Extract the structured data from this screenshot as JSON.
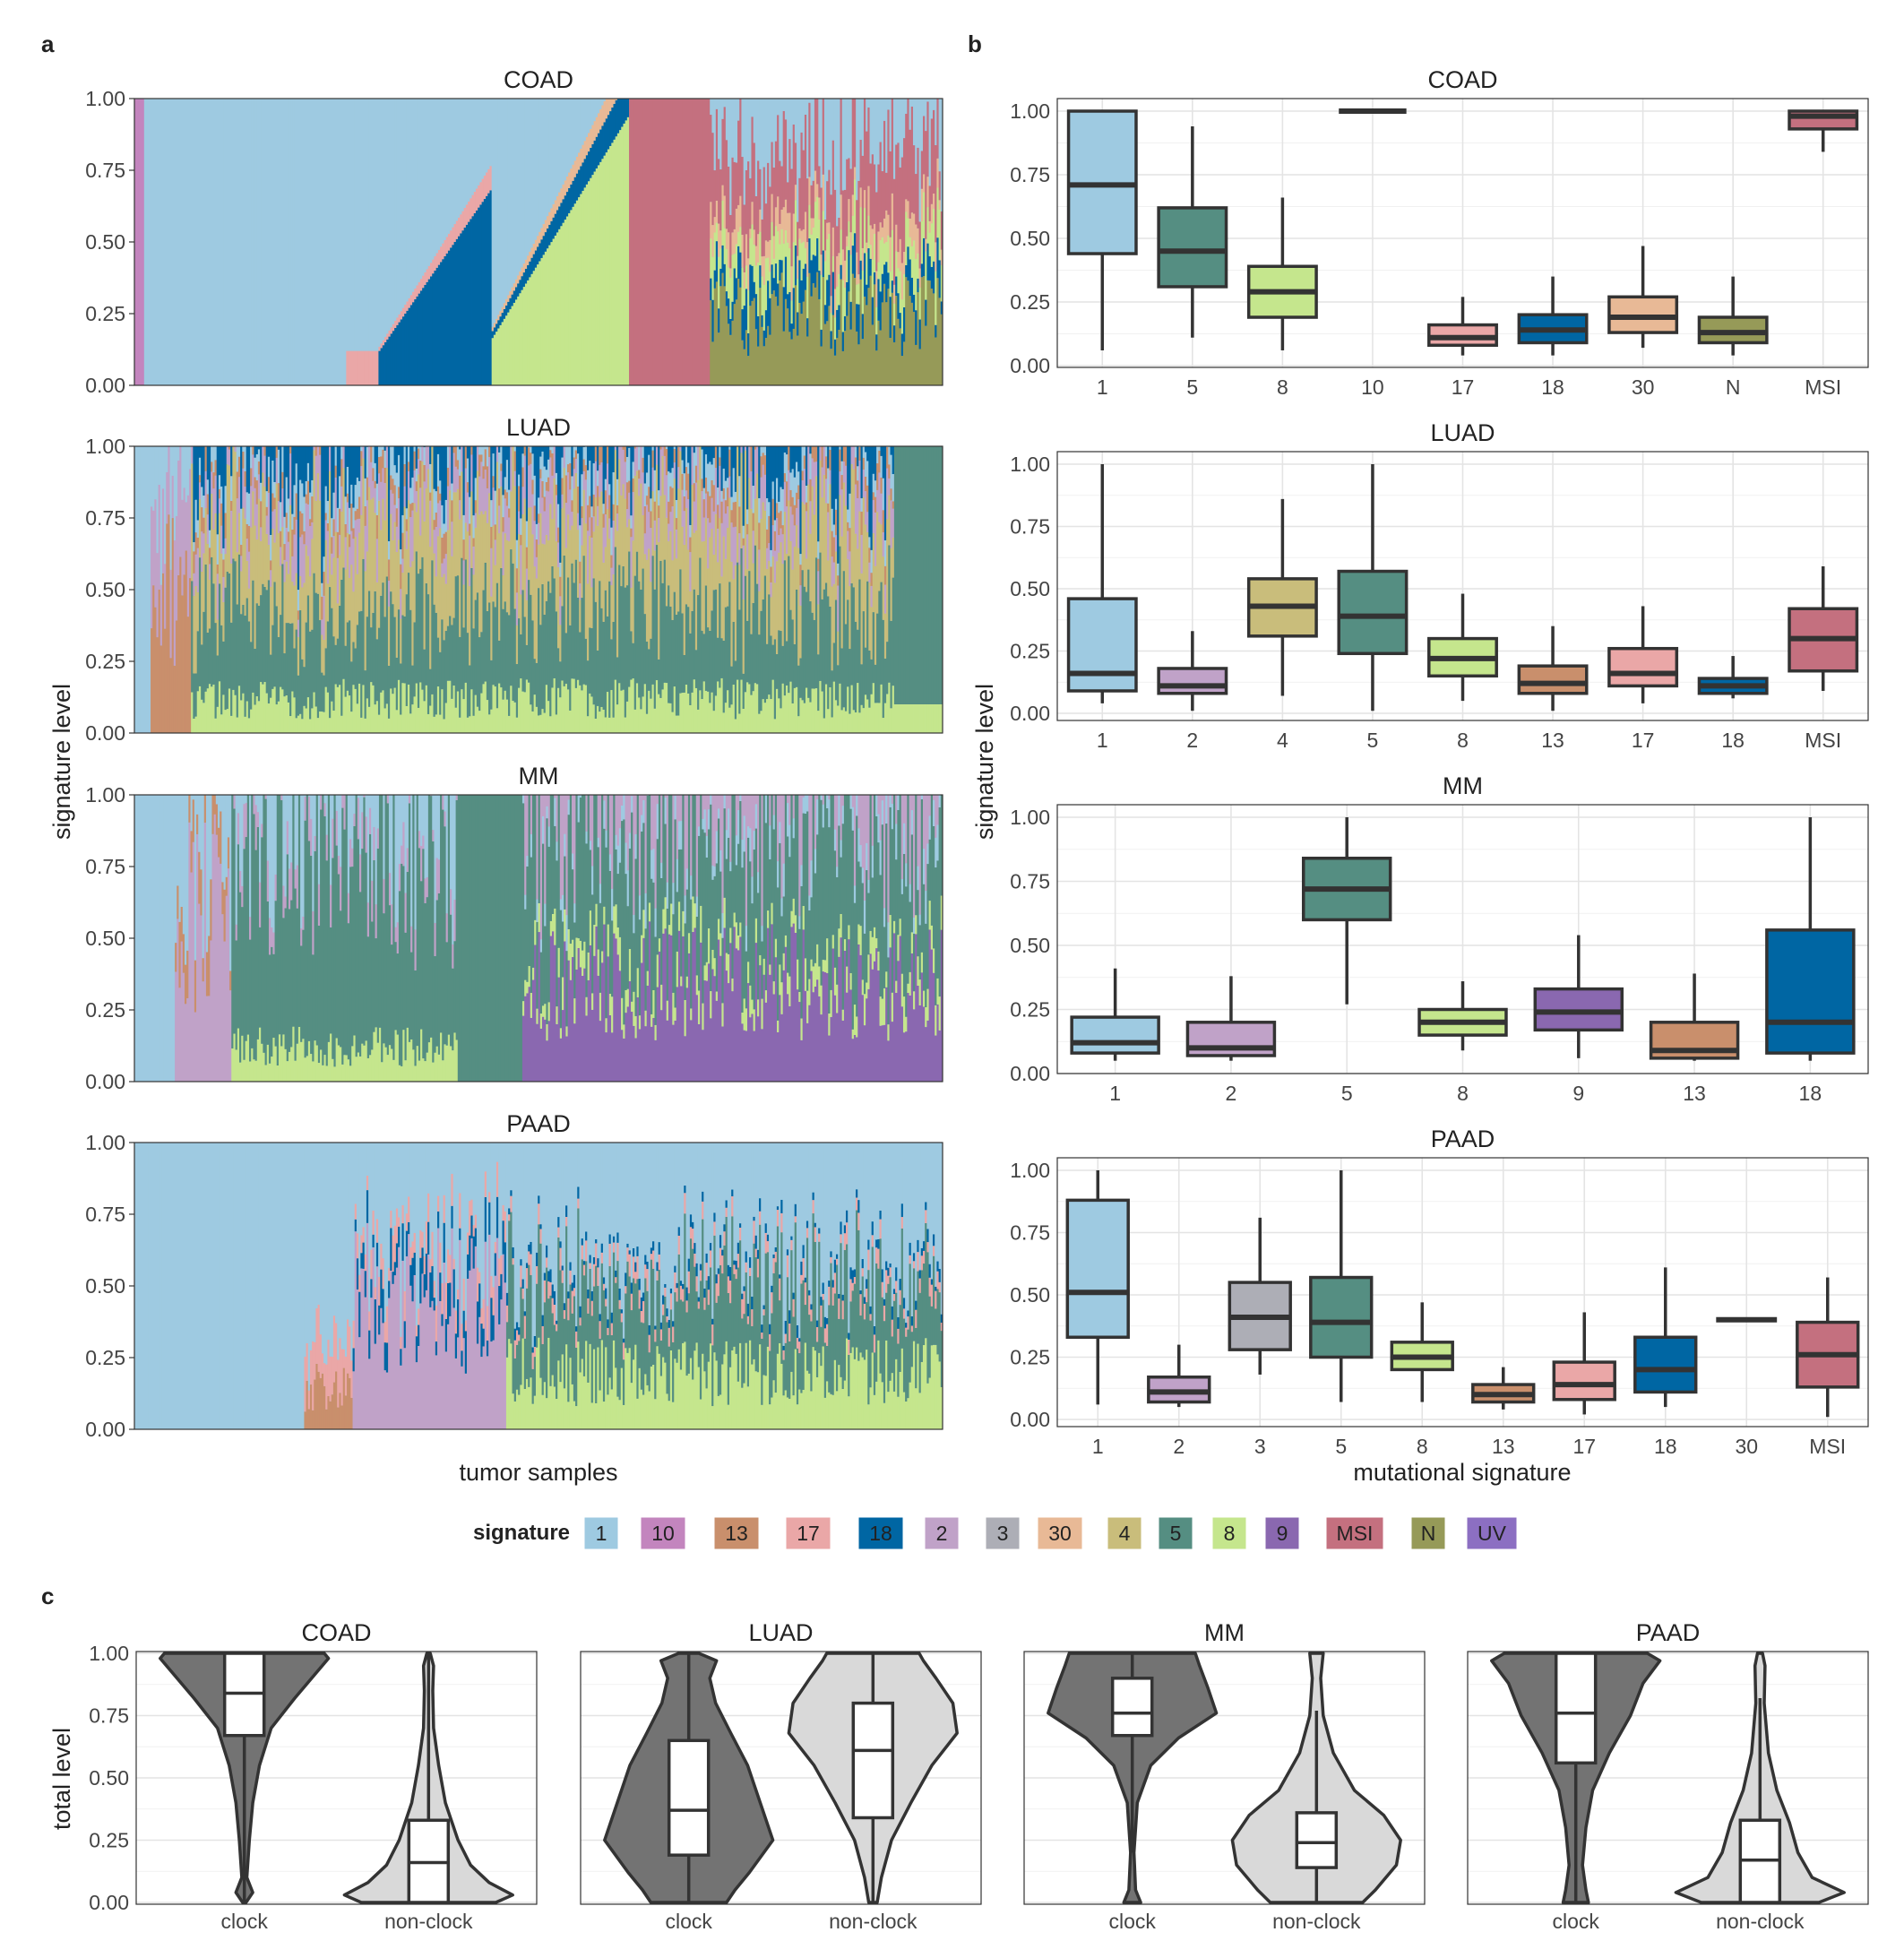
{
  "figure": {
    "panel_labels": [
      "a",
      "b",
      "c"
    ],
    "legend": {
      "title": "signature",
      "entries": [
        {
          "label": "1",
          "color": "#9ecae1"
        },
        {
          "label": "10",
          "color": "#c385be"
        },
        {
          "label": "13",
          "color": "#c98f6c"
        },
        {
          "label": "17",
          "color": "#eaa7a7"
        },
        {
          "label": "18",
          "color": "#0066a3"
        },
        {
          "label": "2",
          "color": "#c0a2c8"
        },
        {
          "label": "3",
          "color": "#adaeb6"
        },
        {
          "label": "30",
          "color": "#e8b996"
        },
        {
          "label": "4",
          "color": "#c9bd7b"
        },
        {
          "label": "5",
          "color": "#558e82"
        },
        {
          "label": "8",
          "color": "#c5e68d"
        },
        {
          "label": "9",
          "color": "#8a68b0"
        },
        {
          "label": "MSI",
          "color": "#c4707f"
        },
        {
          "label": "N",
          "color": "#969a58"
        },
        {
          "label": "UV",
          "color": "#8c6fc2"
        }
      ]
    }
  },
  "chart_data": [
    {
      "panel": "a",
      "type": "area",
      "description": "stacked signature levels per tumor sample, one facet per cancer type",
      "xlabel": "tumor samples",
      "ylabel": "signature level",
      "ylim": [
        0,
        1
      ],
      "yticks": [
        "0.00",
        "0.25",
        "0.50",
        "0.75",
        "1.00"
      ],
      "facets": [
        {
          "title": "COAD",
          "dominant_signatures": [
            "1",
            "17",
            "18",
            "8",
            "MSI",
            "N",
            "30",
            "10"
          ]
        },
        {
          "title": "LUAD",
          "dominant_signatures": [
            "1",
            "2",
            "13",
            "18",
            "4",
            "5",
            "8",
            "17"
          ]
        },
        {
          "title": "MM",
          "dominant_signatures": [
            "1",
            "2",
            "13",
            "5",
            "8",
            "9",
            "UV"
          ]
        },
        {
          "title": "PAAD",
          "dominant_signatures": [
            "1",
            "13",
            "17",
            "18",
            "2",
            "5",
            "8"
          ]
        }
      ]
    },
    {
      "panel": "b",
      "type": "box",
      "xlabel": "mutational signature",
      "ylabel": "signature level",
      "yticks": [
        "0.00",
        "0.25",
        "0.50",
        "0.75",
        "1.00"
      ],
      "facets": [
        {
          "title": "COAD",
          "boxes": [
            {
              "sig": "1",
              "min": 0.06,
              "q1": 0.44,
              "median": 0.71,
              "q3": 1.0,
              "max": 1.0
            },
            {
              "sig": "5",
              "min": 0.11,
              "q1": 0.31,
              "median": 0.45,
              "q3": 0.62,
              "max": 0.94
            },
            {
              "sig": "8",
              "min": 0.06,
              "q1": 0.19,
              "median": 0.29,
              "q3": 0.39,
              "max": 0.66
            },
            {
              "sig": "10",
              "min": 1.0,
              "q1": 1.0,
              "median": 1.0,
              "q3": 1.0,
              "max": 1.0
            },
            {
              "sig": "17",
              "min": 0.04,
              "q1": 0.08,
              "median": 0.11,
              "q3": 0.16,
              "max": 0.27
            },
            {
              "sig": "18",
              "min": 0.04,
              "q1": 0.09,
              "median": 0.14,
              "q3": 0.2,
              "max": 0.35
            },
            {
              "sig": "30",
              "min": 0.07,
              "q1": 0.13,
              "median": 0.19,
              "q3": 0.27,
              "max": 0.47
            },
            {
              "sig": "N",
              "min": 0.04,
              "q1": 0.09,
              "median": 0.13,
              "q3": 0.19,
              "max": 0.35
            },
            {
              "sig": "MSI",
              "min": 0.84,
              "q1": 0.93,
              "median": 0.98,
              "q3": 1.0,
              "max": 1.0
            }
          ]
        },
        {
          "title": "LUAD",
          "boxes": [
            {
              "sig": "1",
              "min": 0.04,
              "q1": 0.09,
              "median": 0.16,
              "q3": 0.46,
              "max": 1.0
            },
            {
              "sig": "2",
              "min": 0.01,
              "q1": 0.08,
              "median": 0.11,
              "q3": 0.18,
              "max": 0.33
            },
            {
              "sig": "4",
              "min": 0.07,
              "q1": 0.31,
              "median": 0.43,
              "q3": 0.54,
              "max": 0.86
            },
            {
              "sig": "5",
              "min": 0.01,
              "q1": 0.24,
              "median": 0.39,
              "q3": 0.57,
              "max": 1.0
            },
            {
              "sig": "8",
              "min": 0.05,
              "q1": 0.15,
              "median": 0.22,
              "q3": 0.3,
              "max": 0.48
            },
            {
              "sig": "13",
              "min": 0.01,
              "q1": 0.08,
              "median": 0.12,
              "q3": 0.19,
              "max": 0.35
            },
            {
              "sig": "17",
              "min": 0.04,
              "q1": 0.11,
              "median": 0.16,
              "q3": 0.26,
              "max": 0.43
            },
            {
              "sig": "18",
              "min": 0.06,
              "q1": 0.08,
              "median": 0.11,
              "q3": 0.14,
              "max": 0.23
            },
            {
              "sig": "MSI",
              "min": 0.09,
              "q1": 0.17,
              "median": 0.3,
              "q3": 0.42,
              "max": 0.59
            }
          ]
        },
        {
          "title": "MM",
          "boxes": [
            {
              "sig": "1",
              "min": 0.05,
              "q1": 0.08,
              "median": 0.12,
              "q3": 0.22,
              "max": 0.41
            },
            {
              "sig": "2",
              "min": 0.05,
              "q1": 0.07,
              "median": 0.1,
              "q3": 0.2,
              "max": 0.38
            },
            {
              "sig": "5",
              "min": 0.27,
              "q1": 0.6,
              "median": 0.72,
              "q3": 0.84,
              "max": 1.0
            },
            {
              "sig": "8",
              "min": 0.09,
              "q1": 0.15,
              "median": 0.2,
              "q3": 0.25,
              "max": 0.36
            },
            {
              "sig": "9",
              "min": 0.06,
              "q1": 0.17,
              "median": 0.24,
              "q3": 0.33,
              "max": 0.54
            },
            {
              "sig": "13",
              "min": 0.05,
              "q1": 0.06,
              "median": 0.09,
              "q3": 0.2,
              "max": 0.39
            },
            {
              "sig": "18",
              "min": 0.05,
              "q1": 0.08,
              "median": 0.2,
              "q3": 0.56,
              "max": 1.0
            }
          ]
        },
        {
          "title": "PAAD",
          "boxes": [
            {
              "sig": "1",
              "min": 0.06,
              "q1": 0.33,
              "median": 0.51,
              "q3": 0.88,
              "max": 1.0
            },
            {
              "sig": "2",
              "min": 0.05,
              "q1": 0.07,
              "median": 0.11,
              "q3": 0.17,
              "max": 0.3
            },
            {
              "sig": "3",
              "min": 0.18,
              "q1": 0.28,
              "median": 0.41,
              "q3": 0.55,
              "max": 0.81
            },
            {
              "sig": "5",
              "min": 0.07,
              "q1": 0.25,
              "median": 0.39,
              "q3": 0.57,
              "max": 1.0
            },
            {
              "sig": "8",
              "min": 0.07,
              "q1": 0.2,
              "median": 0.25,
              "q3": 0.31,
              "max": 0.47
            },
            {
              "sig": "13",
              "min": 0.04,
              "q1": 0.07,
              "median": 0.1,
              "q3": 0.14,
              "max": 0.21
            },
            {
              "sig": "17",
              "min": 0.02,
              "q1": 0.08,
              "median": 0.14,
              "q3": 0.23,
              "max": 0.43
            },
            {
              "sig": "18",
              "min": 0.05,
              "q1": 0.11,
              "median": 0.2,
              "q3": 0.33,
              "max": 0.61
            },
            {
              "sig": "30",
              "min": 0.4,
              "q1": 0.4,
              "median": 0.4,
              "q3": 0.4,
              "max": 0.4
            },
            {
              "sig": "MSI",
              "min": 0.01,
              "q1": 0.13,
              "median": 0.26,
              "q3": 0.39,
              "max": 0.57
            }
          ]
        }
      ]
    },
    {
      "panel": "c",
      "type": "violin",
      "ylabel": "total level",
      "ylim": [
        0,
        1
      ],
      "yticks": [
        "0.00",
        "0.25",
        "0.50",
        "0.75",
        "1.00"
      ],
      "categories": [
        "clock",
        "non-clock"
      ],
      "group_colors": {
        "clock": "#737373",
        "non-clock": "#d9d9d9"
      },
      "facets": [
        {
          "title": "COAD",
          "groups": [
            {
              "name": "clock",
              "min": 0.0,
              "q1": 0.67,
              "median": 0.84,
              "q3": 1.0,
              "max": 1.0,
              "density": [
                [
                  0.0,
                  0.02
                ],
                [
                  0.04,
                  0.1
                ],
                [
                  0.1,
                  0.03
                ],
                [
                  0.25,
                  0.06
                ],
                [
                  0.4,
                  0.1
                ],
                [
                  0.55,
                  0.18
                ],
                [
                  0.7,
                  0.32
                ],
                [
                  0.82,
                  0.6
                ],
                [
                  0.92,
                  0.85
                ],
                [
                  0.98,
                  1.0
                ],
                [
                  1.0,
                  0.95
                ]
              ]
            },
            {
              "name": "non-clock",
              "min": 0.0,
              "q1": 0.0,
              "median": 0.16,
              "q3": 0.33,
              "max": 1.0,
              "density": [
                [
                  0.0,
                  0.8
                ],
                [
                  0.03,
                  1.0
                ],
                [
                  0.08,
                  0.72
                ],
                [
                  0.15,
                  0.5
                ],
                [
                  0.25,
                  0.35
                ],
                [
                  0.4,
                  0.2
                ],
                [
                  0.55,
                  0.12
                ],
                [
                  0.7,
                  0.06
                ],
                [
                  0.85,
                  0.05
                ],
                [
                  0.95,
                  0.06
                ],
                [
                  1.0,
                  0.02
                ]
              ]
            }
          ]
        },
        {
          "title": "LUAD",
          "groups": [
            {
              "name": "clock",
              "min": 0.0,
              "q1": 0.19,
              "median": 0.37,
              "q3": 0.65,
              "max": 1.0,
              "density": [
                [
                  0.0,
                  0.45
                ],
                [
                  0.05,
                  0.55
                ],
                [
                  0.12,
                  0.72
                ],
                [
                  0.25,
                  1.0
                ],
                [
                  0.4,
                  0.85
                ],
                [
                  0.55,
                  0.7
                ],
                [
                  0.68,
                  0.5
                ],
                [
                  0.8,
                  0.32
                ],
                [
                  0.9,
                  0.25
                ],
                [
                  0.97,
                  0.33
                ],
                [
                  1.0,
                  0.12
                ]
              ]
            },
            {
              "name": "non-clock",
              "min": 0.0,
              "q1": 0.34,
              "median": 0.61,
              "q3": 0.8,
              "max": 1.0,
              "density": [
                [
                  0.0,
                  0.05
                ],
                [
                  0.1,
                  0.1
                ],
                [
                  0.25,
                  0.22
                ],
                [
                  0.4,
                  0.45
                ],
                [
                  0.55,
                  0.7
                ],
                [
                  0.68,
                  1.0
                ],
                [
                  0.8,
                  0.95
                ],
                [
                  0.9,
                  0.75
                ],
                [
                  0.97,
                  0.6
                ],
                [
                  1.0,
                  0.55
                ]
              ]
            }
          ]
        },
        {
          "title": "MM",
          "groups": [
            {
              "name": "clock",
              "min": 0.2,
              "q1": 0.67,
              "median": 0.76,
              "q3": 0.9,
              "max": 1.0,
              "density": [
                [
                  0.0,
                  0.1
                ],
                [
                  0.05,
                  0.04
                ],
                [
                  0.2,
                  0.02
                ],
                [
                  0.4,
                  0.06
                ],
                [
                  0.55,
                  0.22
                ],
                [
                  0.66,
                  0.55
                ],
                [
                  0.76,
                  1.0
                ],
                [
                  0.86,
                  0.9
                ],
                [
                  0.95,
                  0.8
                ],
                [
                  1.0,
                  0.75
                ]
              ]
            },
            {
              "name": "non-clock",
              "min": 0.0,
              "q1": 0.14,
              "median": 0.24,
              "q3": 0.36,
              "max": 0.77,
              "density": [
                [
                  0.0,
                  0.55
                ],
                [
                  0.05,
                  0.7
                ],
                [
                  0.15,
                  0.95
                ],
                [
                  0.25,
                  1.0
                ],
                [
                  0.35,
                  0.8
                ],
                [
                  0.45,
                  0.45
                ],
                [
                  0.6,
                  0.2
                ],
                [
                  0.75,
                  0.08
                ],
                [
                  0.9,
                  0.05
                ],
                [
                  1.0,
                  0.08
                ]
              ]
            }
          ]
        },
        {
          "title": "PAAD",
          "groups": [
            {
              "name": "clock",
              "min": 0.0,
              "q1": 0.56,
              "median": 0.76,
              "q3": 1.0,
              "max": 1.0,
              "density": [
                [
                  0.0,
                  0.15
                ],
                [
                  0.05,
                  0.12
                ],
                [
                  0.15,
                  0.08
                ],
                [
                  0.3,
                  0.12
                ],
                [
                  0.45,
                  0.2
                ],
                [
                  0.6,
                  0.4
                ],
                [
                  0.75,
                  0.65
                ],
                [
                  0.88,
                  0.8
                ],
                [
                  0.97,
                  1.0
                ],
                [
                  1.0,
                  0.85
                ]
              ]
            },
            {
              "name": "non-clock",
              "min": 0.0,
              "q1": 0.0,
              "median": 0.17,
              "q3": 0.33,
              "max": 0.82,
              "density": [
                [
                  0.0,
                  0.7
                ],
                [
                  0.04,
                  1.0
                ],
                [
                  0.1,
                  0.62
                ],
                [
                  0.2,
                  0.45
                ],
                [
                  0.32,
                  0.35
                ],
                [
                  0.45,
                  0.2
                ],
                [
                  0.6,
                  0.1
                ],
                [
                  0.8,
                  0.05
                ],
                [
                  0.95,
                  0.06
                ],
                [
                  1.0,
                  0.03
                ]
              ]
            }
          ]
        }
      ]
    }
  ]
}
